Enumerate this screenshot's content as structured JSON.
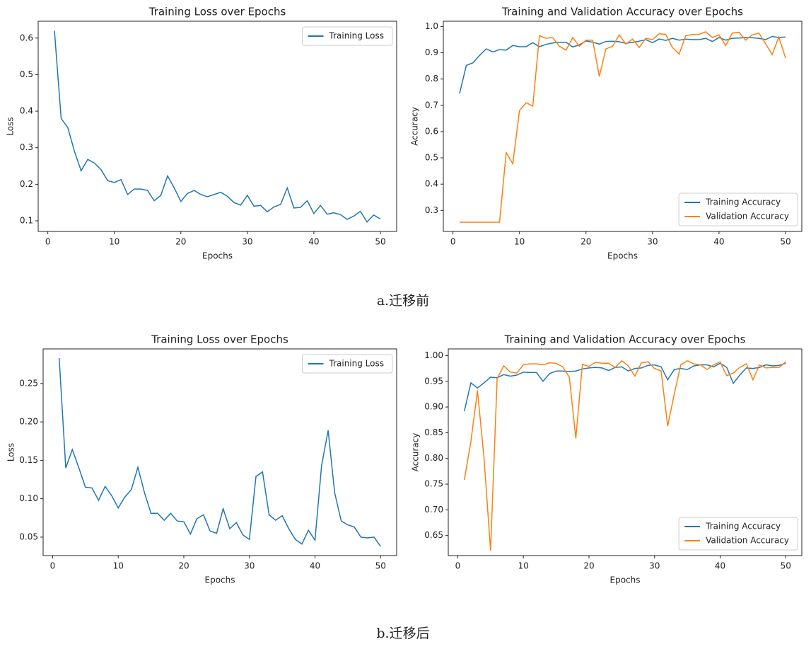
{
  "chart_data": [
    {
      "type": "line",
      "title": "Training Loss over Epochs",
      "xlabel": "Epochs",
      "ylabel": "Loss",
      "x": [
        1,
        2,
        3,
        4,
        5,
        6,
        7,
        8,
        9,
        10,
        11,
        12,
        13,
        14,
        15,
        16,
        17,
        18,
        19,
        20,
        21,
        22,
        23,
        24,
        25,
        26,
        27,
        28,
        29,
        30,
        31,
        32,
        33,
        34,
        35,
        36,
        37,
        38,
        39,
        40,
        41,
        42,
        43,
        44,
        45,
        46,
        47,
        48,
        49,
        50
      ],
      "xlim": [
        -1.45,
        52.45
      ],
      "xticks": [
        0,
        10,
        20,
        30,
        40,
        50
      ],
      "ylim": [
        0.071,
        0.646
      ],
      "yticks": [
        0.1,
        0.2,
        0.3,
        0.4,
        0.5,
        0.6
      ],
      "legend": "upper right",
      "series": [
        {
          "name": "Training Loss",
          "color": "#1f77b4",
          "values": [
            0.62,
            0.38,
            0.355,
            0.29,
            0.237,
            0.268,
            0.258,
            0.24,
            0.21,
            0.205,
            0.213,
            0.172,
            0.187,
            0.187,
            0.183,
            0.155,
            0.17,
            0.223,
            0.19,
            0.153,
            0.175,
            0.183,
            0.172,
            0.166,
            0.172,
            0.178,
            0.167,
            0.15,
            0.143,
            0.17,
            0.14,
            0.142,
            0.125,
            0.138,
            0.145,
            0.19,
            0.135,
            0.137,
            0.155,
            0.12,
            0.142,
            0.118,
            0.122,
            0.117,
            0.104,
            0.113,
            0.126,
            0.097,
            0.116,
            0.105
          ]
        }
      ]
    },
    {
      "type": "line",
      "title": "Training and Validation Accuracy over Epochs",
      "xlabel": "Epochs",
      "ylabel": "Accuracy",
      "x": [
        1,
        2,
        3,
        4,
        5,
        6,
        7,
        8,
        9,
        10,
        11,
        12,
        13,
        14,
        15,
        16,
        17,
        18,
        19,
        20,
        21,
        22,
        23,
        24,
        25,
        26,
        27,
        28,
        29,
        30,
        31,
        32,
        33,
        34,
        35,
        36,
        37,
        38,
        39,
        40,
        41,
        42,
        43,
        44,
        45,
        46,
        47,
        48,
        49,
        50
      ],
      "xlim": [
        -1.45,
        52.45
      ],
      "xticks": [
        0,
        10,
        20,
        30,
        40,
        50
      ],
      "ylim": [
        0.22,
        1.02
      ],
      "yticks": [
        0.3,
        0.4,
        0.5,
        0.6,
        0.7,
        0.8,
        0.9,
        {
          "value": 1,
          "label": "1.0"
        }
      ],
      "legend": "lower right",
      "series": [
        {
          "name": "Training Accuracy",
          "color": "#1f77b4",
          "values": [
            0.745,
            0.852,
            0.862,
            0.89,
            0.915,
            0.903,
            0.912,
            0.91,
            0.928,
            0.923,
            0.923,
            0.938,
            0.923,
            0.932,
            0.937,
            0.94,
            0.94,
            0.922,
            0.93,
            0.945,
            0.94,
            0.933,
            0.943,
            0.944,
            0.942,
            0.936,
            0.94,
            0.944,
            0.95,
            0.938,
            0.952,
            0.947,
            0.955,
            0.948,
            0.952,
            0.95,
            0.95,
            0.955,
            0.943,
            0.958,
            0.948,
            0.955,
            0.956,
            0.958,
            0.957,
            0.955,
            0.95,
            0.962,
            0.958,
            0.96
          ]
        },
        {
          "name": "Validation Accuracy",
          "color": "#ff7f0e",
          "values": [
            0.255,
            0.255,
            0.255,
            0.255,
            0.255,
            0.255,
            0.255,
            0.52,
            0.478,
            0.68,
            0.71,
            0.697,
            0.965,
            0.955,
            0.958,
            0.925,
            0.91,
            0.958,
            0.925,
            0.948,
            0.948,
            0.81,
            0.915,
            0.925,
            0.968,
            0.933,
            0.952,
            0.92,
            0.955,
            0.95,
            0.972,
            0.97,
            0.92,
            0.895,
            0.965,
            0.97,
            0.97,
            0.98,
            0.958,
            0.968,
            0.928,
            0.975,
            0.978,
            0.948,
            0.968,
            0.975,
            0.935,
            0.893,
            0.96,
            0.88
          ]
        }
      ]
    },
    {
      "type": "line",
      "title": "Training Loss over Epochs",
      "xlabel": "Epochs",
      "ylabel": "Loss",
      "x": [
        1,
        2,
        3,
        4,
        5,
        6,
        7,
        8,
        9,
        10,
        11,
        12,
        13,
        14,
        15,
        16,
        17,
        18,
        19,
        20,
        21,
        22,
        23,
        24,
        25,
        26,
        27,
        28,
        29,
        30,
        31,
        32,
        33,
        34,
        35,
        36,
        37,
        38,
        39,
        40,
        41,
        42,
        43,
        44,
        45,
        46,
        47,
        48,
        49,
        50
      ],
      "xlim": [
        -1.45,
        52.45
      ],
      "xticks": [
        0,
        10,
        20,
        30,
        40,
        50
      ],
      "ylim": [
        0.026,
        0.295
      ],
      "yticks": [
        0.05,
        {
          "value": 0.1,
          "label": "0.10"
        },
        0.15,
        {
          "value": 0.2,
          "label": "0.20"
        },
        0.25
      ],
      "legend": "upper right",
      "series": [
        {
          "name": "Training Loss",
          "color": "#1f77b4",
          "values": [
            0.283,
            0.14,
            0.164,
            0.14,
            0.115,
            0.114,
            0.098,
            0.116,
            0.104,
            0.088,
            0.102,
            0.112,
            0.141,
            0.108,
            0.081,
            0.081,
            0.072,
            0.081,
            0.071,
            0.07,
            0.054,
            0.074,
            0.079,
            0.058,
            0.055,
            0.087,
            0.061,
            0.069,
            0.053,
            0.047,
            0.129,
            0.135,
            0.079,
            0.072,
            0.078,
            0.061,
            0.047,
            0.041,
            0.059,
            0.046,
            0.143,
            0.189,
            0.108,
            0.071,
            0.066,
            0.063,
            0.05,
            0.049,
            0.05,
            0.038
          ]
        }
      ]
    },
    {
      "type": "line",
      "title": "Training and Validation Accuracy over Epochs",
      "xlabel": "Epochs",
      "ylabel": "Accuracy",
      "x": [
        1,
        2,
        3,
        4,
        5,
        6,
        7,
        8,
        9,
        10,
        11,
        12,
        13,
        14,
        15,
        16,
        17,
        18,
        19,
        20,
        21,
        22,
        23,
        24,
        25,
        26,
        27,
        28,
        29,
        30,
        31,
        32,
        33,
        34,
        35,
        36,
        37,
        38,
        39,
        40,
        41,
        42,
        43,
        44,
        45,
        46,
        47,
        48,
        49,
        50
      ],
      "xlim": [
        -1.45,
        52.45
      ],
      "xticks": [
        0,
        10,
        20,
        30,
        40,
        50
      ],
      "ylim": [
        0.611,
        1.013
      ],
      "yticks": [
        0.65,
        {
          "value": 0.7,
          "label": "0.70"
        },
        0.75,
        {
          "value": 0.8,
          "label": "0.80"
        },
        0.85,
        {
          "value": 0.9,
          "label": "0.90"
        },
        0.95,
        {
          "value": 1,
          "label": "1.00"
        }
      ],
      "legend": "lower right",
      "series": [
        {
          "name": "Training Accuracy",
          "color": "#1f77b4",
          "values": [
            0.892,
            0.947,
            0.937,
            0.947,
            0.958,
            0.957,
            0.963,
            0.96,
            0.962,
            0.968,
            0.967,
            0.967,
            0.95,
            0.965,
            0.97,
            0.97,
            0.969,
            0.97,
            0.974,
            0.976,
            0.977,
            0.976,
            0.971,
            0.977,
            0.978,
            0.97,
            0.975,
            0.976,
            0.981,
            0.982,
            0.978,
            0.953,
            0.973,
            0.975,
            0.973,
            0.98,
            0.982,
            0.982,
            0.978,
            0.985,
            0.977,
            0.946,
            0.962,
            0.976,
            0.975,
            0.977,
            0.982,
            0.98,
            0.981,
            0.985
          ]
        },
        {
          "name": "Validation Accuracy",
          "color": "#ff7f0e",
          "values": [
            0.758,
            0.833,
            0.932,
            0.8,
            0.621,
            0.955,
            0.98,
            0.968,
            0.966,
            0.982,
            0.984,
            0.984,
            0.982,
            0.986,
            0.985,
            0.978,
            0.958,
            0.839,
            0.983,
            0.979,
            0.987,
            0.985,
            0.985,
            0.977,
            0.99,
            0.98,
            0.96,
            0.986,
            0.988,
            0.975,
            0.97,
            0.863,
            0.925,
            0.982,
            0.99,
            0.984,
            0.982,
            0.973,
            0.982,
            0.988,
            0.961,
            0.966,
            0.977,
            0.984,
            0.953,
            0.982,
            0.976,
            0.977,
            0.977,
            0.988
          ]
        }
      ]
    }
  ],
  "captions": [
    "a.迁移前",
    "b.迁移后"
  ]
}
